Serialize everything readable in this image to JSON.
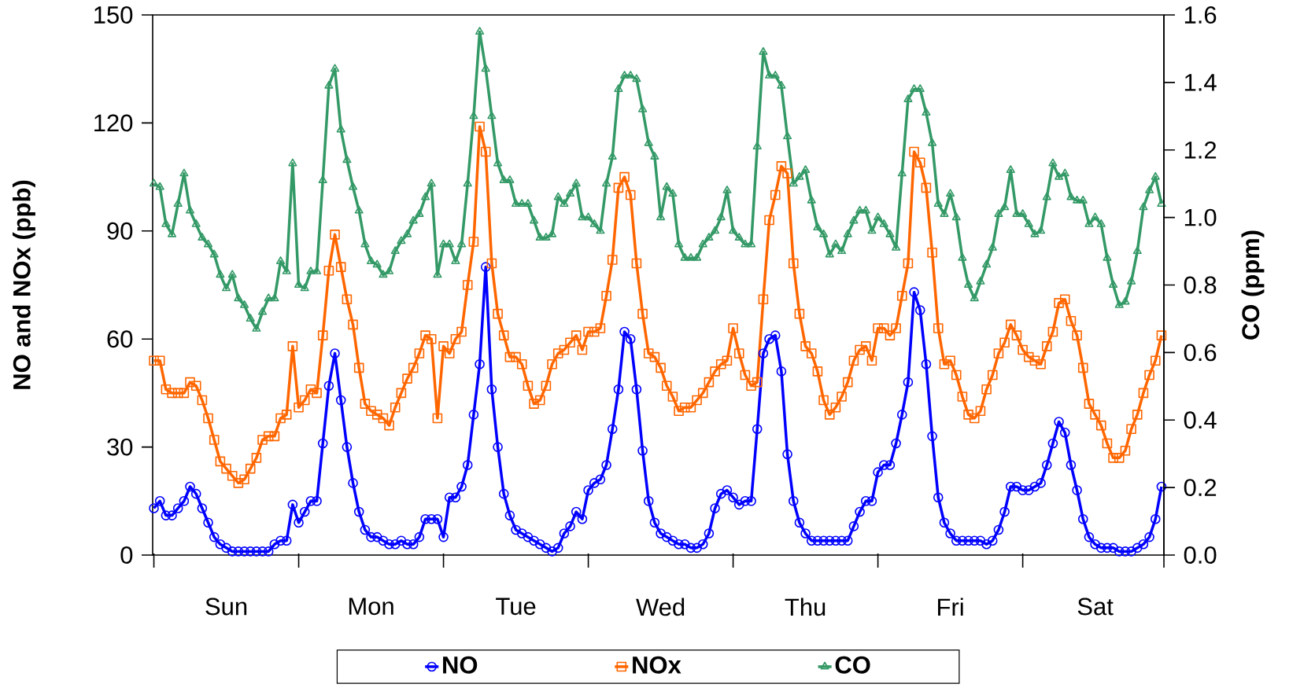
{
  "chart_data": {
    "type": "line",
    "ylabel": "NO and NOx (ppb)",
    "y2label": "CO (ppm)",
    "legend": "bottom",
    "categories": [
      null,
      null,
      null,
      null,
      null,
      null,
      null,
      null,
      null,
      null,
      null,
      null,
      "Sun",
      null,
      null,
      null,
      null,
      null,
      null,
      null,
      null,
      null,
      null,
      null,
      null,
      null,
      null,
      null,
      null,
      null,
      null,
      null,
      null,
      null,
      null,
      null,
      "Mon",
      null,
      null,
      null,
      null,
      null,
      null,
      null,
      null,
      null,
      null,
      null,
      null,
      null,
      null,
      null,
      null,
      null,
      null,
      null,
      null,
      null,
      null,
      null,
      "Tue",
      null,
      null,
      null,
      null,
      null,
      null,
      null,
      null,
      null,
      null,
      null,
      null,
      null,
      null,
      null,
      null,
      null,
      null,
      null,
      null,
      null,
      null,
      null,
      "Wed",
      null,
      null,
      null,
      null,
      null,
      null,
      null,
      null,
      null,
      null,
      null,
      null,
      null,
      null,
      null,
      null,
      null,
      null,
      null,
      null,
      null,
      null,
      null,
      "Thu",
      null,
      null,
      null,
      null,
      null,
      null,
      null,
      null,
      null,
      null,
      null,
      null,
      null,
      null,
      null,
      null,
      null,
      null,
      null,
      null,
      null,
      null,
      null,
      "Fri",
      null,
      null,
      null,
      null,
      null,
      null,
      null,
      null,
      null,
      null,
      null,
      null,
      null,
      null,
      null,
      null,
      null,
      null,
      null,
      null,
      null,
      null,
      null,
      "Sat",
      null,
      null,
      null,
      null,
      null,
      null,
      null,
      null,
      null,
      null,
      null
    ],
    "ylim": [
      0,
      150
    ],
    "yticks": [
      0,
      30,
      60,
      90,
      120,
      150
    ],
    "y2lim": [
      0,
      1.6
    ],
    "y2ticks": [
      {
        "value": 0,
        "label": "0.0"
      },
      0.2,
      0.4,
      0.6,
      0.8,
      {
        "value": 1,
        "label": "1.0"
      },
      1.2,
      1.4,
      1.6
    ],
    "series": [
      {
        "name": "NO",
        "color": "#0000ff",
        "marker": "circle",
        "values": [
          13,
          15,
          11,
          11,
          13,
          15,
          19,
          17,
          13,
          9,
          5,
          3,
          2,
          1,
          1,
          1,
          1,
          1,
          1,
          1,
          3,
          4,
          4,
          14,
          9,
          12,
          15,
          15,
          31,
          47,
          56,
          43,
          30,
          20,
          12,
          7,
          5,
          5,
          4,
          3,
          3,
          4,
          3,
          3,
          5,
          10,
          10,
          10,
          5,
          16,
          16,
          19,
          25,
          39,
          53,
          80,
          46,
          30,
          17,
          11,
          7,
          6,
          5,
          4,
          3,
          2,
          1,
          2,
          6,
          8,
          12,
          10,
          18,
          20,
          21,
          25,
          35,
          46,
          62,
          60,
          46,
          29,
          15,
          9,
          6,
          5,
          4,
          3,
          3,
          2,
          2,
          3,
          6,
          13,
          17,
          18,
          16,
          14,
          15,
          15,
          35,
          56,
          60,
          61,
          51,
          28,
          15,
          9,
          6,
          4,
          4,
          4,
          4,
          4,
          4,
          4,
          8,
          12,
          15,
          15,
          23,
          25,
          25,
          31,
          39,
          48,
          73,
          68,
          53,
          33,
          16,
          9,
          6,
          4,
          4,
          4,
          4,
          4,
          3,
          4,
          7,
          12,
          19,
          19,
          18,
          18,
          19,
          20,
          25,
          31,
          37,
          34,
          25,
          18,
          10,
          5,
          3,
          2,
          2,
          2,
          1,
          1,
          1,
          2,
          3,
          5,
          10,
          19
        ]
      },
      {
        "name": "NOx",
        "color": "#ff6600",
        "marker": "square",
        "values": [
          54,
          54,
          46,
          45,
          45,
          45,
          48,
          47,
          43,
          38,
          32,
          26,
          24,
          22,
          20,
          21,
          24,
          27,
          32,
          33,
          33,
          38,
          39,
          58,
          41,
          43,
          46,
          45,
          61,
          79,
          89,
          80,
          71,
          64,
          52,
          42,
          40,
          39,
          38,
          36,
          41,
          45,
          49,
          52,
          56,
          61,
          60,
          38,
          58,
          56,
          60,
          62,
          75,
          87,
          119,
          112,
          81,
          67,
          61,
          55,
          55,
          53,
          47,
          42,
          43,
          47,
          53,
          56,
          57,
          59,
          61,
          57,
          62,
          62,
          63,
          72,
          82,
          102,
          105,
          100,
          81,
          67,
          56,
          55,
          52,
          47,
          44,
          40,
          41,
          41,
          43,
          45,
          48,
          51,
          53,
          54,
          63,
          56,
          50,
          47,
          48,
          71,
          93,
          100,
          108,
          106,
          81,
          67,
          58,
          56,
          51,
          43,
          39,
          41,
          44,
          48,
          54,
          57,
          58,
          54,
          63,
          63,
          61,
          63,
          72,
          81,
          112,
          109,
          102,
          84,
          63,
          53,
          54,
          50,
          44,
          39,
          38,
          40,
          46,
          50,
          56,
          59,
          64,
          61,
          57,
          55,
          54,
          53,
          58,
          62,
          70,
          71,
          65,
          61,
          52,
          42,
          39,
          36,
          31,
          27,
          27,
          29,
          35,
          39,
          45,
          50,
          54,
          61
        ]
      },
      {
        "name": "CO",
        "color": "#339966",
        "marker": "triangle",
        "axis": "y2",
        "values": [
          1.1,
          1.09,
          0.98,
          0.95,
          1.04,
          1.13,
          1.02,
          0.98,
          0.94,
          0.92,
          0.89,
          0.83,
          0.79,
          0.83,
          0.76,
          0.74,
          0.7,
          0.67,
          0.72,
          0.76,
          0.76,
          0.87,
          0.84,
          1.16,
          0.8,
          0.79,
          0.84,
          0.84,
          1.11,
          1.39,
          1.44,
          1.26,
          1.17,
          1.09,
          1.02,
          0.92,
          0.87,
          0.86,
          0.83,
          0.84,
          0.9,
          0.93,
          0.95,
          0.99,
          1.01,
          1.06,
          1.1,
          0.83,
          0.92,
          0.92,
          0.87,
          0.92,
          1.1,
          1.3,
          1.55,
          1.44,
          1.3,
          1.16,
          1.11,
          1.11,
          1.04,
          1.04,
          1.04,
          0.99,
          0.94,
          0.94,
          0.95,
          1.06,
          1.04,
          1.07,
          1.1,
          1.0,
          1.0,
          0.98,
          0.96,
          1.1,
          1.18,
          1.38,
          1.42,
          1.42,
          1.41,
          1.32,
          1.22,
          1.18,
          1.0,
          1.09,
          1.07,
          0.92,
          0.88,
          0.88,
          0.88,
          0.92,
          0.94,
          0.96,
          1.0,
          1.08,
          0.96,
          0.94,
          0.92,
          0.92,
          1.21,
          1.49,
          1.42,
          1.42,
          1.39,
          1.24,
          1.1,
          1.12,
          1.14,
          1.05,
          0.97,
          0.95,
          0.89,
          0.92,
          0.9,
          0.95,
          0.99,
          1.02,
          1.02,
          0.96,
          1.0,
          0.98,
          0.95,
          0.91,
          1.13,
          1.35,
          1.38,
          1.38,
          1.31,
          1.22,
          1.04,
          1.01,
          1.07,
          1.0,
          0.88,
          0.8,
          0.76,
          0.81,
          0.86,
          0.91,
          1.01,
          1.03,
          1.14,
          1.01,
          1.01,
          0.98,
          0.95,
          0.96,
          1.06,
          1.16,
          1.12,
          1.13,
          1.06,
          1.05,
          1.05,
          0.98,
          1.0,
          0.98,
          0.88,
          0.8,
          0.74,
          0.75,
          0.81,
          0.9,
          1.03,
          1.08,
          1.12,
          1.04
        ]
      }
    ]
  }
}
